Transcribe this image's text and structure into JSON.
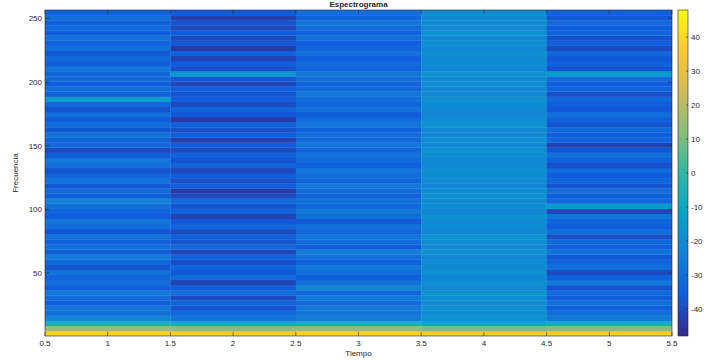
{
  "chart_data": {
    "type": "heatmap",
    "title": "Espectrograma",
    "x_label": "Tiempo",
    "y_label": "Frecuencia",
    "x": [
      1,
      2,
      3,
      4,
      5
    ],
    "y": [
      2.5,
      6.5,
      10.5,
      14.5,
      18.5,
      22.5,
      26.5,
      30.5,
      34.5,
      38.5,
      42.5,
      46.5,
      50.5,
      54.5,
      58.5,
      62.5,
      66.5,
      70.5,
      74.5,
      78.5,
      82.5,
      86.5,
      90.5,
      94.5,
      98.5,
      102.5,
      106.5,
      110.5,
      114.5,
      118.5,
      122.5,
      126.5,
      130.5,
      134.5,
      138.5,
      142.5,
      146.5,
      150.5,
      154.5,
      158.5,
      162.5,
      166.5,
      170.5,
      174.5,
      178.5,
      182.5,
      186.5,
      190.5,
      194.5,
      198.5,
      202.5,
      206.5,
      210.5,
      214.5,
      218.5,
      222.5,
      226.5,
      230.5,
      234.5,
      238.5,
      242.5,
      246.5,
      250.5,
      254.5
    ],
    "z": [
      [
        38,
        36,
        37,
        35,
        36
      ],
      [
        15,
        12,
        14,
        10,
        12
      ],
      [
        -5,
        -8,
        -6,
        -10,
        -7
      ],
      [
        -22,
        -28,
        -25,
        -18,
        -26
      ],
      [
        -30,
        -32,
        -28,
        -20,
        -30
      ],
      [
        -28,
        -38,
        -27,
        -19,
        -35
      ],
      [
        -35,
        -33,
        -31,
        -21,
        -29
      ],
      [
        -31,
        -40,
        -26,
        -20,
        -36
      ],
      [
        -27,
        -30,
        -33,
        -18,
        -31
      ],
      [
        -36,
        -35,
        -22,
        -21,
        -38
      ],
      [
        -30,
        -42,
        -29,
        -20,
        -27
      ],
      [
        -33,
        -31,
        -35,
        -22,
        -34
      ],
      [
        -29,
        -37,
        -30,
        -19,
        -40
      ],
      [
        -38,
        -33,
        -27,
        -21,
        -30
      ],
      [
        -32,
        -39,
        -34,
        -20,
        -33
      ],
      [
        -26,
        -34,
        -30,
        -22,
        -37
      ],
      [
        -35,
        -41,
        -25,
        -19,
        -29
      ],
      [
        -30,
        -32,
        -36,
        -21,
        -35
      ],
      [
        -34,
        -38,
        -31,
        -20,
        -32
      ],
      [
        -29,
        -35,
        -28,
        -18,
        -39
      ],
      [
        -37,
        -40,
        -33,
        -22,
        -30
      ],
      [
        -31,
        -33,
        -29,
        -20,
        -36
      ],
      [
        -28,
        -37,
        -37,
        -21,
        -33
      ],
      [
        -36,
        -42,
        -30,
        -19,
        -28
      ],
      [
        -33,
        -34,
        -26,
        -22,
        -41
      ],
      [
        -30,
        -38,
        -32,
        -20,
        -15
      ],
      [
        -24,
        -31,
        -29,
        -21,
        -32
      ],
      [
        -35,
        -40,
        -34,
        -19,
        -35
      ],
      [
        -31,
        -44,
        -31,
        -20,
        -30
      ],
      [
        -37,
        -36,
        -27,
        -22,
        -38
      ],
      [
        -29,
        -39,
        -33,
        -21,
        -33
      ],
      [
        -33,
        -35,
        -30,
        -20,
        -36
      ],
      [
        -38,
        -41,
        -28,
        -19,
        -31
      ],
      [
        -30,
        -33,
        -35,
        -21,
        -39
      ],
      [
        -27,
        -38,
        -31,
        -22,
        -34
      ],
      [
        -36,
        -34,
        -29,
        -20,
        -30
      ],
      [
        -40,
        -40,
        -33,
        -19,
        -37
      ],
      [
        -32,
        -36,
        -27,
        -21,
        -42
      ],
      [
        -34,
        -43,
        -32,
        -20,
        -33
      ],
      [
        -29,
        -35,
        -30,
        -22,
        -36
      ],
      [
        -37,
        -39,
        -34,
        -21,
        -31
      ],
      [
        -31,
        -34,
        -28,
        -19,
        -38
      ],
      [
        -35,
        -44,
        -31,
        -20,
        -34
      ],
      [
        -30,
        -37,
        -36,
        -22,
        -30
      ],
      [
        -38,
        -33,
        -29,
        -21,
        -37
      ],
      [
        -32,
        -40,
        -33,
        -20,
        -35
      ],
      [
        -14,
        -36,
        -30,
        -19,
        -32
      ],
      [
        -34,
        -38,
        -27,
        -21,
        -39
      ],
      [
        -30,
        -35,
        -32,
        -22,
        -33
      ],
      [
        -36,
        -41,
        -34,
        -20,
        -36
      ],
      [
        -31,
        -37,
        -30,
        -21,
        -31
      ],
      [
        -33,
        -16,
        -28,
        -19,
        -14
      ],
      [
        -28,
        -39,
        -33,
        -22,
        -38
      ],
      [
        -35,
        -36,
        -31,
        -20,
        -34
      ],
      [
        -31,
        -42,
        -35,
        -21,
        -37
      ],
      [
        -37,
        -34,
        -29,
        -19,
        -32
      ],
      [
        -30,
        -44,
        -33,
        -22,
        -40
      ],
      [
        -34,
        -37,
        -36,
        -20,
        -35
      ],
      [
        -29,
        -40,
        -30,
        -21,
        -38
      ],
      [
        -36,
        -35,
        -34,
        -19,
        -33
      ],
      [
        -32,
        -41,
        -31,
        -22,
        -36
      ],
      [
        -35,
        -38,
        -28,
        -20,
        -31
      ],
      [
        -30,
        -43,
        -33,
        -21,
        -37
      ],
      [
        -33,
        -36,
        -30,
        -20,
        -34
      ]
    ],
    "xlim": [
      0.5,
      5.5
    ],
    "ylim": [
      0.5,
      256.5
    ],
    "xticks": [
      0.5,
      1,
      1.5,
      2,
      2.5,
      3,
      3.5,
      4,
      4.5,
      5,
      5.5
    ],
    "yticks": [
      50,
      100,
      150,
      200,
      250
    ],
    "clim": [
      -48,
      48
    ],
    "cticks": [
      -40,
      -30,
      -20,
      -10,
      0,
      10,
      20,
      30,
      40
    ]
  }
}
